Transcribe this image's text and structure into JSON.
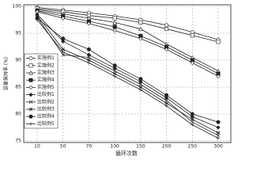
{
  "chart_data": {
    "type": "line",
    "x_label": "循环次数",
    "y_label": "容量保持率 (%)",
    "categories": [
      "10",
      "50",
      "70",
      "100",
      "150",
      "200",
      "250",
      "300"
    ],
    "ylim": [
      75,
      100
    ],
    "yticks": [
      75,
      80,
      85,
      90,
      95,
      100
    ],
    "grid": true,
    "legend": "upper-left",
    "series": [
      {
        "name": "实施例1",
        "color": "#222",
        "marker": "circle",
        "values": [
          99.8,
          99.3,
          98.8,
          98.2,
          97.5,
          96.5,
          95.2,
          93.8
        ]
      },
      {
        "name": "实施例2",
        "color": "#222",
        "marker": "square",
        "values": [
          99.6,
          99.0,
          98.3,
          97.8,
          97.0,
          95.8,
          94.6,
          93.4
        ]
      },
      {
        "name": "实施例3",
        "color": "#222",
        "marker": "triangle",
        "values": [
          99.4,
          98.6,
          97.8,
          97.0,
          95.8,
          93.0,
          90.5,
          88.0
        ]
      },
      {
        "name": "实施例4",
        "color": "#222",
        "marker": "filled-square",
        "values": [
          99.2,
          98.2,
          97.2,
          96.2,
          94.5,
          92.5,
          90.0,
          87.5
        ]
      },
      {
        "name": "实施例5",
        "color": "#222",
        "marker": "diamond",
        "values": [
          99.0,
          97.8,
          96.8,
          95.5,
          94.0,
          92.0,
          89.5,
          87.0
        ]
      },
      {
        "name": "比较例1",
        "color": "#222",
        "marker": "filled-diamond",
        "values": [
          98.5,
          93.5,
          91.0,
          88.5,
          86.0,
          83.0,
          79.5,
          77.5
        ]
      },
      {
        "name": "比较例2",
        "color": "#222",
        "marker": "cross",
        "values": [
          98.0,
          91.0,
          90.5,
          88.0,
          85.5,
          82.5,
          78.5,
          76.0
        ]
      },
      {
        "name": "比较例3",
        "color": "#222",
        "marker": "star",
        "values": [
          98.3,
          92.0,
          90.0,
          87.5,
          85.0,
          82.0,
          79.0,
          76.5
        ]
      },
      {
        "name": "比较例4",
        "color": "#222",
        "marker": "filled-circle",
        "values": [
          97.8,
          94.0,
          92.0,
          89.0,
          86.5,
          83.5,
          80.0,
          78.5
        ]
      },
      {
        "name": "比较例5",
        "color": "#222",
        "marker": "plus",
        "values": [
          97.5,
          91.5,
          89.5,
          87.0,
          84.5,
          81.5,
          78.0,
          75.5
        ]
      }
    ]
  }
}
